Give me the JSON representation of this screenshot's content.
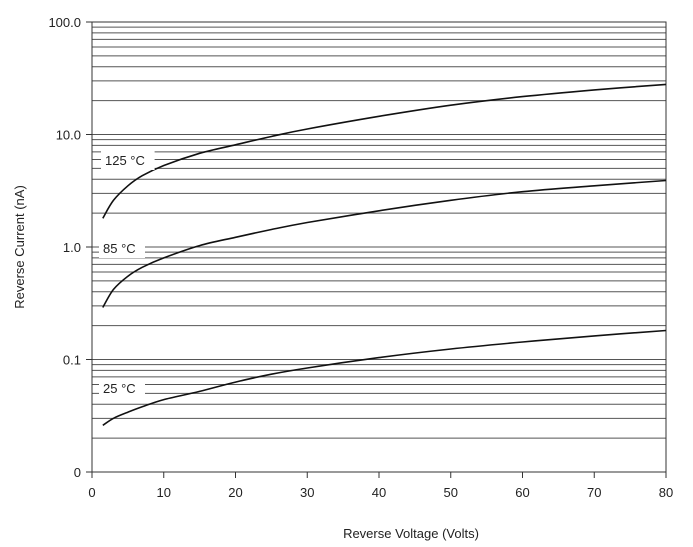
{
  "chart_data": {
    "type": "line",
    "title": "",
    "xlabel": "Reverse Voltage (Volts)",
    "ylabel": "Reverse Current (nA)",
    "x_scale": "linear",
    "y_scale": "log",
    "xlim": [
      0,
      80
    ],
    "ylim": [
      0.01,
      100
    ],
    "x_ticks": [
      0,
      10,
      20,
      30,
      40,
      50,
      60,
      70,
      80
    ],
    "x_tick_labels": [
      "0",
      "10",
      "20",
      "30",
      "40",
      "50",
      "60",
      "70",
      "80"
    ],
    "y_ticks": [
      0.01,
      0.1,
      1,
      10,
      100
    ],
    "y_tick_labels": [
      "0",
      "0.1",
      "1.0",
      "10.0",
      "100.0"
    ],
    "grid": "horizontal-log-minor",
    "legend": "none",
    "series": [
      {
        "name": "125 °C",
        "x": [
          1.5,
          3,
          5,
          7,
          10,
          15,
          20,
          25,
          30,
          40,
          50,
          60,
          70,
          80
        ],
        "y": [
          1.8,
          2.6,
          3.5,
          4.3,
          5.3,
          6.8,
          8.1,
          9.6,
          11.2,
          14.5,
          18.2,
          21.7,
          24.9,
          27.9
        ]
      },
      {
        "name": "85 °C",
        "x": [
          1.5,
          3,
          5,
          7,
          10,
          15,
          20,
          25,
          30,
          40,
          50,
          60,
          70,
          80
        ],
        "y": [
          0.29,
          0.42,
          0.55,
          0.66,
          0.8,
          1.03,
          1.22,
          1.43,
          1.65,
          2.1,
          2.6,
          3.1,
          3.5,
          3.9
        ]
      },
      {
        "name": "25 °C",
        "x": [
          1.5,
          3,
          5,
          7,
          10,
          15,
          20,
          25,
          30,
          40,
          50,
          60,
          70,
          80
        ],
        "y": [
          0.026,
          0.03,
          0.034,
          0.038,
          0.044,
          0.052,
          0.063,
          0.074,
          0.084,
          0.104,
          0.124,
          0.143,
          0.162,
          0.181
        ]
      }
    ],
    "annotations": [
      {
        "text": "125 °C",
        "series": 0
      },
      {
        "text": "85 °C",
        "series": 1
      },
      {
        "text": "25 °C",
        "series": 2
      }
    ]
  }
}
